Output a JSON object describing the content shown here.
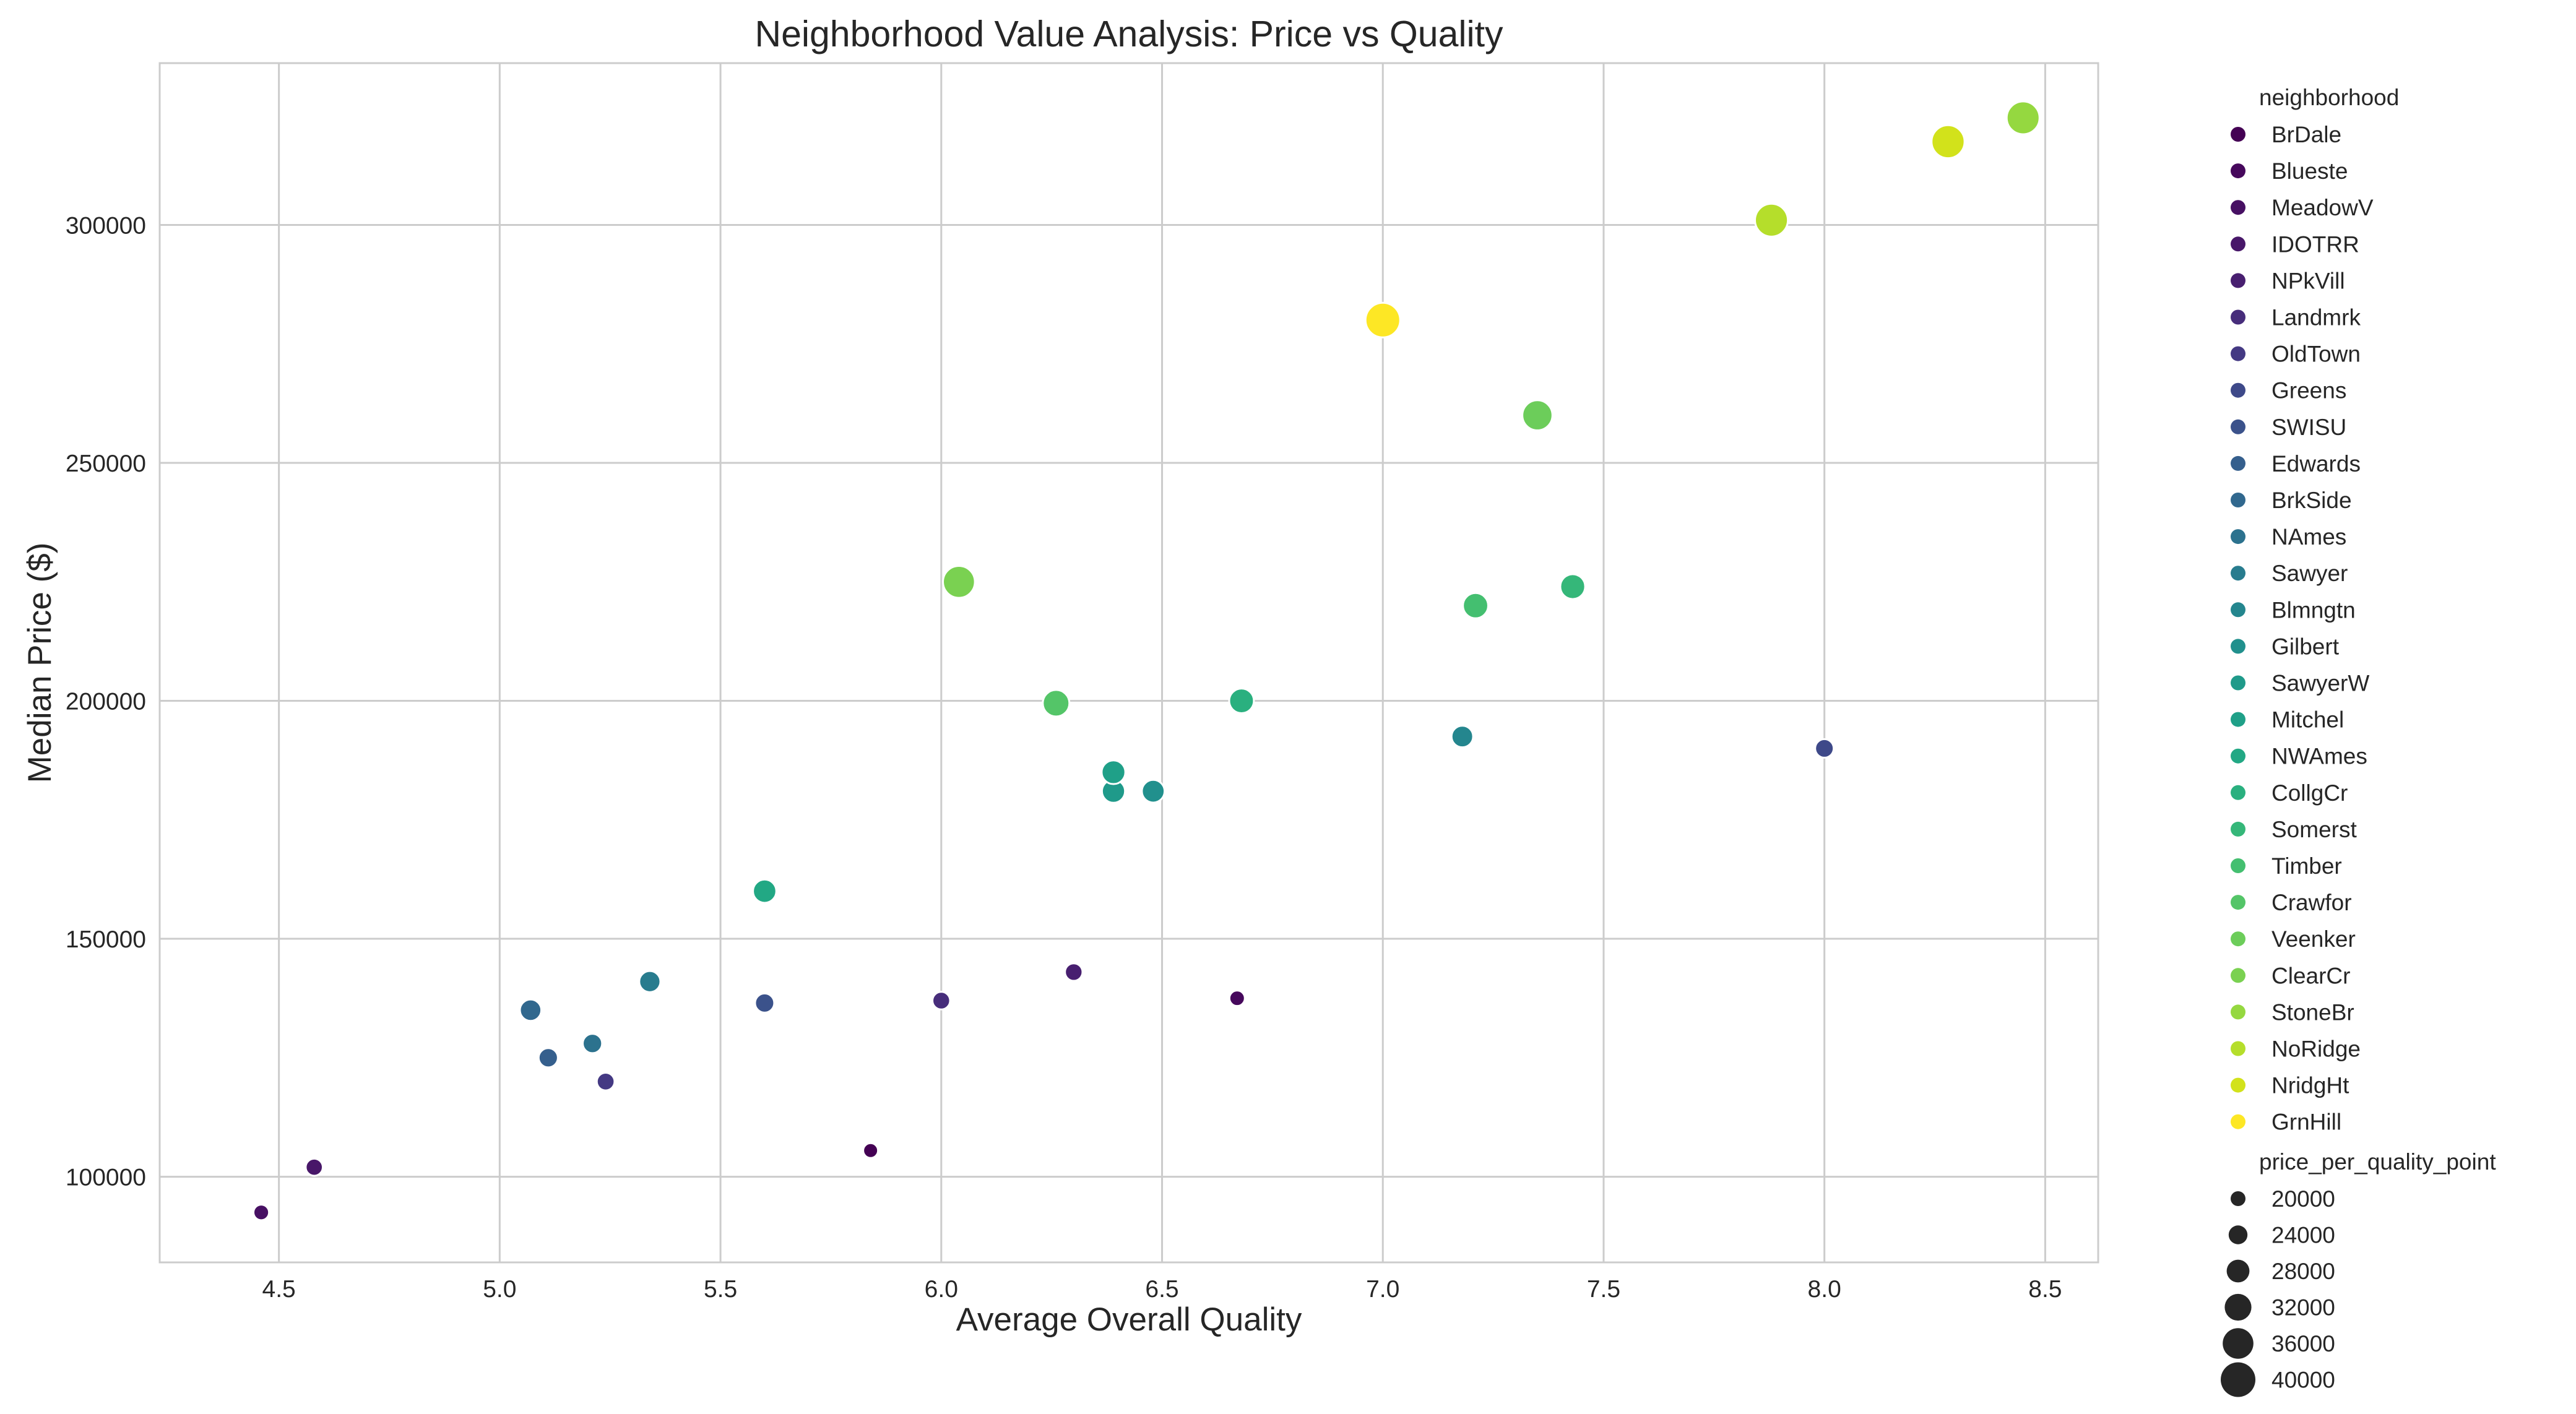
{
  "chart_data": {
    "type": "scatter",
    "title": "Neighborhood Value Analysis: Price vs Quality",
    "xlabel": "Average Overall Quality",
    "ylabel": "Median Price ($)",
    "xlim": [
      4.23,
      8.62
    ],
    "ylim": [
      82000,
      334000
    ],
    "xticks": [
      "4.5",
      "5.0",
      "5.5",
      "6.0",
      "6.5",
      "7.0",
      "7.5",
      "8.0",
      "8.5"
    ],
    "yticks": [
      "100000",
      "150000",
      "200000",
      "250000",
      "300000"
    ],
    "grid": true,
    "legend_position": "outside-right",
    "hue_legend_title": "neighborhood",
    "size_legend_title": "price_per_quality_point",
    "size_legend_values": [
      "20000",
      "24000",
      "28000",
      "32000",
      "36000",
      "40000"
    ],
    "points": [
      {
        "name": "BrDale",
        "x": 5.84,
        "y": 105500,
        "color": "#440154"
      },
      {
        "name": "Blueste",
        "x": 6.67,
        "y": 137500,
        "color": "#46085c"
      },
      {
        "name": "MeadowV",
        "x": 4.46,
        "y": 92500,
        "color": "#471063"
      },
      {
        "name": "IDOTRR",
        "x": 4.58,
        "y": 102000,
        "color": "#481769"
      },
      {
        "name": "NPkVill",
        "x": 6.3,
        "y": 143000,
        "color": "#481f70"
      },
      {
        "name": "Landmrk",
        "x": 6.0,
        "y": 137000,
        "color": "#472d7b"
      },
      {
        "name": "OldTown",
        "x": 5.24,
        "y": 120000,
        "color": "#443983"
      },
      {
        "name": "Greens",
        "x": 8.0,
        "y": 190000,
        "color": "#3e4989"
      },
      {
        "name": "SWISU",
        "x": 5.6,
        "y": 136500,
        "color": "#3b528b"
      },
      {
        "name": "Edwards",
        "x": 5.11,
        "y": 125000,
        "color": "#355f8d"
      },
      {
        "name": "BrkSide",
        "x": 5.07,
        "y": 135000,
        "color": "#31688e"
      },
      {
        "name": "NAmes",
        "x": 5.21,
        "y": 128000,
        "color": "#2c728e"
      },
      {
        "name": "Sawyer",
        "x": 5.34,
        "y": 141000,
        "color": "#287c8e"
      },
      {
        "name": "Blmngtn",
        "x": 7.18,
        "y": 192500,
        "color": "#24868e"
      },
      {
        "name": "Gilbert",
        "x": 6.48,
        "y": 181000,
        "color": "#21908d"
      },
      {
        "name": "SawyerW",
        "x": 6.39,
        "y": 181000,
        "color": "#1f9a8a"
      },
      {
        "name": "Mitchel",
        "x": 6.39,
        "y": 185000,
        "color": "#1fa088"
      },
      {
        "name": "NWAmes",
        "x": 5.6,
        "y": 160000,
        "color": "#22a884"
      },
      {
        "name": "CollgCr",
        "x": 6.68,
        "y": 200000,
        "color": "#2ab07f"
      },
      {
        "name": "Somerst",
        "x": 7.43,
        "y": 224000,
        "color": "#35b779"
      },
      {
        "name": "Timber",
        "x": 7.21,
        "y": 220000,
        "color": "#44bf70"
      },
      {
        "name": "Crawfor",
        "x": 6.26,
        "y": 199500,
        "color": "#54c568"
      },
      {
        "name": "Veenker",
        "x": 7.35,
        "y": 260000,
        "color": "#6ccd5a"
      },
      {
        "name": "ClearCr",
        "x": 6.04,
        "y": 225000,
        "color": "#7ad151"
      },
      {
        "name": "StoneBr",
        "x": 8.45,
        "y": 322500,
        "color": "#95d840"
      },
      {
        "name": "NoRidge",
        "x": 7.88,
        "y": 301000,
        "color": "#b5de2b"
      },
      {
        "name": "NridgHt",
        "x": 8.28,
        "y": 317500,
        "color": "#d2e21b"
      },
      {
        "name": "GrnHill",
        "x": 7.0,
        "y": 280000,
        "color": "#fde725"
      }
    ]
  }
}
